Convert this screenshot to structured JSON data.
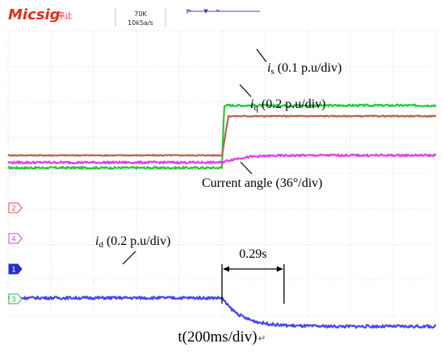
{
  "header": {
    "brand": "Micsig",
    "status": "停止",
    "timebase_top": "70K",
    "timebase_bottom": "10kSa/s"
  },
  "colors": {
    "brand": "#e0301c",
    "is": "#28c83c",
    "iq": "#b5654a",
    "angle": "#e040e6",
    "id": "#4848e8",
    "grid": "#b9c7d9",
    "channel1": "#2430c8",
    "channel2": "#e05050",
    "channel3": "#30b048",
    "channel4": "#c050d0"
  },
  "channel_markers": [
    {
      "label": "2",
      "color_key": "channel2",
      "filled": false
    },
    {
      "label": "4",
      "color_key": "channel4",
      "filled": false
    },
    {
      "label": "1",
      "color_key": "channel1",
      "filled": true
    },
    {
      "label": "3",
      "color_key": "channel3",
      "filled": false
    }
  ],
  "chart_data": {
    "type": "line",
    "x_unit_label": "t(200ms/div)",
    "x_caption_mark": "↵",
    "x_divisions": 10,
    "y_divisions": 8,
    "step_time_div": 5.0,
    "grid": true,
    "series": [
      {
        "name": "is",
        "label_main": "i",
        "label_sub": "s",
        "label_rest": " (0.1 p.u/div)",
        "color_key": "is",
        "before_div": 0.15,
        "after_div": 1.9,
        "transition_div": 0.05,
        "settle_shape": "step",
        "noise": 0.03
      },
      {
        "name": "iq",
        "label_main": "i",
        "label_sub": "q",
        "label_rest": " (0.2 p.u/div)",
        "color_key": "iq",
        "before_div": 0.5,
        "after_div": 1.6,
        "transition_div": 0.15,
        "settle_shape": "ramp",
        "noise": 0.015
      },
      {
        "name": "angle",
        "label_main": "Current angle (36°/div)",
        "label_sub": "",
        "label_rest": "",
        "color_key": "angle",
        "before_div": 0.3,
        "after_div": 0.5,
        "transition_div": 1.0,
        "settle_shape": "exp",
        "noise": 0.03
      },
      {
        "name": "id",
        "label_main": "i",
        "label_sub": "d",
        "label_rest": " (0.2 p.u/div)",
        "color_key": "id",
        "before_div": -3.5,
        "after_div": -4.3,
        "transition_div": 1.0,
        "settle_shape": "exp",
        "noise": 0.04
      }
    ],
    "annotations": [
      {
        "text": "0.29s",
        "from_div": 5.0,
        "to_div": 6.45
      }
    ]
  }
}
